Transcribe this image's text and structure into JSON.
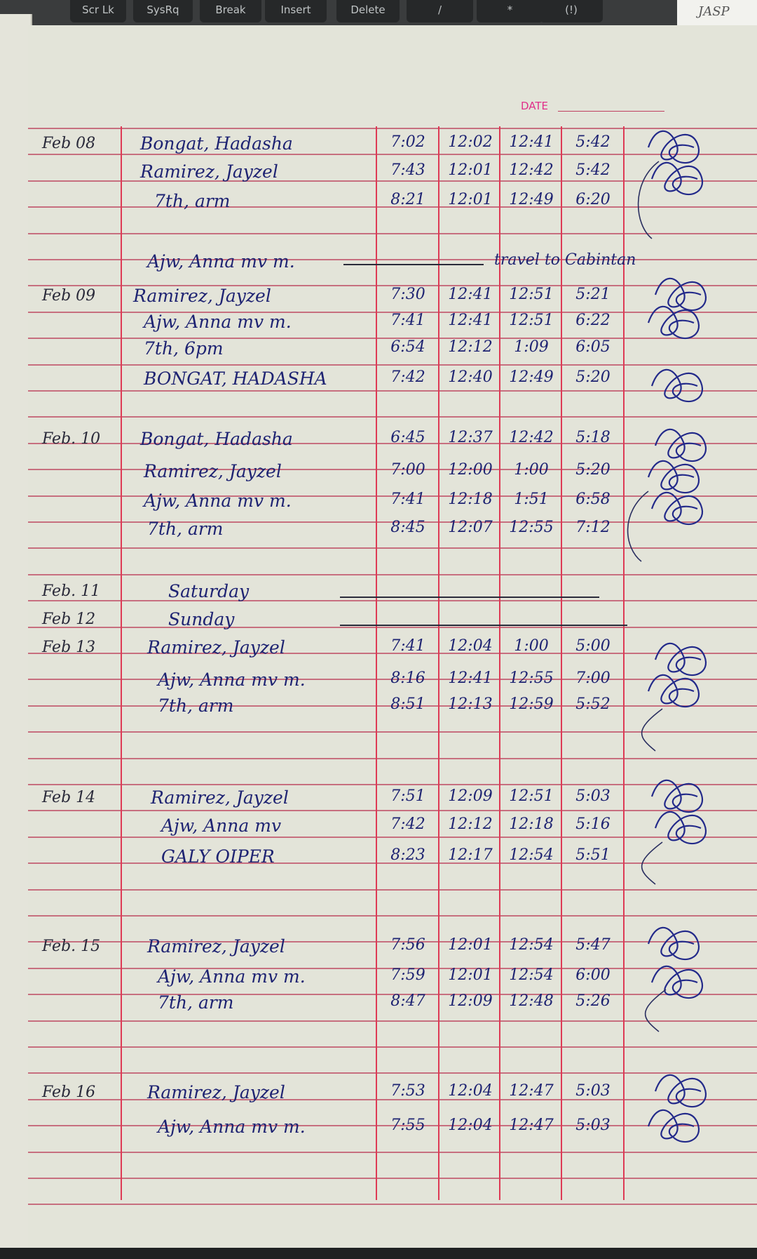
{
  "keyboard": {
    "keys": [
      "Scr Lk",
      "SysRq",
      "Break",
      "Insert",
      "Delete",
      "/",
      "*",
      "(!)"
    ]
  },
  "sticky_note": "JASP",
  "header": {
    "date_label": "DATE"
  },
  "colors": {
    "paper": "#e3e4d9",
    "ink": "#1e2372",
    "rule_red": "#de3a55",
    "date_label": "#e0308a"
  },
  "entries": [
    {
      "date": "Feb 08",
      "name": "Bongat, Hadasha",
      "times": [
        "7:02",
        "12:02",
        "12:41",
        "5:42"
      ]
    },
    {
      "date": "",
      "name": "Ramirez, Jayzel",
      "times": [
        "7:43",
        "12:01",
        "12:42",
        "5:42"
      ]
    },
    {
      "date": "",
      "name": "7th, arm",
      "times": [
        "8:21",
        "12:01",
        "12:49",
        "6:20"
      ]
    },
    {
      "date": "",
      "name": "Ajw, Anna mv m.",
      "times": [],
      "note": "travel to Cabintan"
    },
    {
      "date": "Feb 09",
      "name": "Ramirez, Jayzel",
      "times": [
        "7:30",
        "12:41",
        "12:51",
        "5:21"
      ]
    },
    {
      "date": "",
      "name": "Ajw, Anna mv m.",
      "times": [
        "7:41",
        "12:41",
        "12:51",
        "6:22"
      ]
    },
    {
      "date": "",
      "name": "7th, 6pm",
      "times": [
        "6:54",
        "12:12",
        "1:09",
        "6:05"
      ]
    },
    {
      "date": "",
      "name": "BONGAT, HADASHA",
      "times": [
        "7:42",
        "12:40",
        "12:49",
        "5:20"
      ]
    },
    {
      "date": "Feb. 10",
      "name": "Bongat, Hadasha",
      "times": [
        "6:45",
        "12:37",
        "12:42",
        "5:18"
      ]
    },
    {
      "date": "",
      "name": "Ramirez, Jayzel",
      "times": [
        "7:00",
        "12:00",
        "1:00",
        "5:20"
      ]
    },
    {
      "date": "",
      "name": "Ajw, Anna mv m.",
      "times": [
        "7:41",
        "12:18",
        "1:51",
        "6:58"
      ]
    },
    {
      "date": "",
      "name": "7th, arm",
      "times": [
        "8:45",
        "12:07",
        "12:55",
        "7:12"
      ]
    },
    {
      "date": "Feb. 11",
      "name": "Saturday",
      "times": []
    },
    {
      "date": "Feb 12",
      "name": "Sunday",
      "times": []
    },
    {
      "date": "Feb 13",
      "name": "Ramirez, Jayzel",
      "times": [
        "7:41",
        "12:04",
        "1:00",
        "5:00"
      ]
    },
    {
      "date": "",
      "name": "Ajw, Anna mv m.",
      "times": [
        "8:16",
        "12:41",
        "12:55",
        "7:00"
      ]
    },
    {
      "date": "",
      "name": "7th, arm",
      "times": [
        "8:51",
        "12:13",
        "12:59",
        "5:52"
      ]
    },
    {
      "date": "Feb 14",
      "name": "Ramirez, Jayzel",
      "times": [
        "7:51",
        "12:09",
        "12:51",
        "5:03"
      ]
    },
    {
      "date": "",
      "name": "Ajw, Anna mv",
      "times": [
        "7:42",
        "12:12",
        "12:18",
        "5:16"
      ]
    },
    {
      "date": "",
      "name": "GALY OIPER",
      "times": [
        "8:23",
        "12:17",
        "12:54",
        "5:51"
      ]
    },
    {
      "date": "Feb. 15",
      "name": "Ramirez, Jayzel",
      "times": [
        "7:56",
        "12:01",
        "12:54",
        "5:47"
      ]
    },
    {
      "date": "",
      "name": "Ajw, Anna mv m.",
      "times": [
        "7:59",
        "12:01",
        "12:54",
        "6:00"
      ]
    },
    {
      "date": "",
      "name": "7th, arm",
      "times": [
        "8:47",
        "12:09",
        "12:48",
        "5:26"
      ]
    },
    {
      "date": "Feb 16",
      "name": "Ramirez, Jayzel",
      "times": [
        "7:53",
        "12:04",
        "12:47",
        "5:03"
      ]
    },
    {
      "date": "",
      "name": "Ajw, Anna mv m.",
      "times": [
        "7:55",
        "12:04",
        "12:47",
        "5:03"
      ]
    }
  ]
}
